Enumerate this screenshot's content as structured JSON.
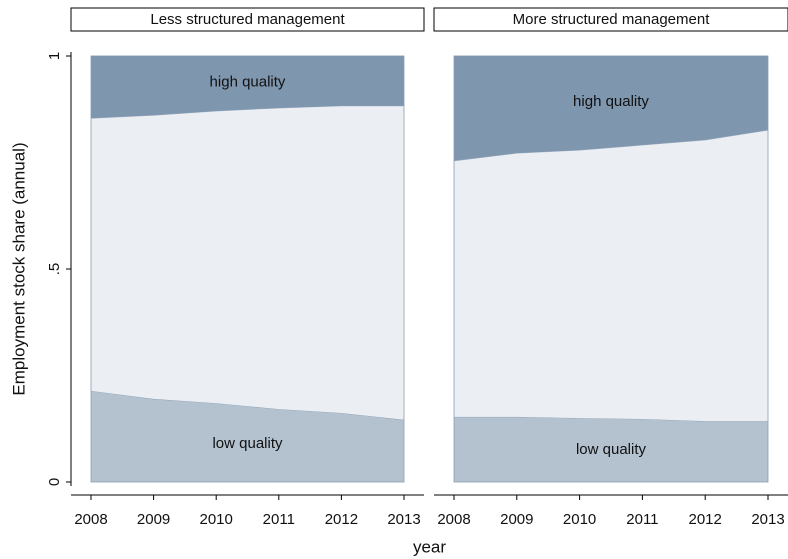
{
  "chart_data": [
    {
      "type": "area",
      "stacked": true,
      "title": "Less structured management",
      "ylabel": "Employment stock share (annual)",
      "xlabel": "year",
      "x": [
        2008,
        2009,
        2010,
        2011,
        2012,
        2013
      ],
      "xlim": [
        2008,
        2013
      ],
      "xticks": [
        2008,
        2009,
        2010,
        2011,
        2012,
        2013
      ],
      "ylim": [
        0,
        1
      ],
      "yticks": [
        0,
        {
          "value": 0.5,
          "label": ".5"
        },
        1
      ],
      "series": [
        {
          "name": "low quality",
          "color": "#b4c2d0",
          "values": [
            0.214,
            0.195,
            0.185,
            0.171,
            0.162,
            0.146
          ]
        },
        {
          "color": "#ebeff4",
          "values": [
            0.64,
            0.666,
            0.686,
            0.707,
            0.721,
            0.737
          ]
        },
        {
          "name": "high quality",
          "color": "#7f96af",
          "values": [
            0.146,
            0.139,
            0.129,
            0.122,
            0.117,
            0.117
          ]
        }
      ]
    },
    {
      "type": "area",
      "stacked": true,
      "title": "More structured management",
      "x": [
        2008,
        2009,
        2010,
        2011,
        2012,
        2013
      ],
      "xlim": [
        2008,
        2013
      ],
      "xticks": [
        2008,
        2009,
        2010,
        2011,
        2012,
        2013
      ],
      "ylim": [
        0,
        1
      ],
      "series": [
        {
          "name": "low quality",
          "color": "#b4c2d0",
          "values": [
            0.153,
            0.153,
            0.15,
            0.148,
            0.143,
            0.143
          ]
        },
        {
          "color": "#ebeff4",
          "values": [
            0.601,
            0.619,
            0.629,
            0.643,
            0.66,
            0.683
          ]
        },
        {
          "name": "high quality",
          "color": "#7f96af",
          "values": [
            0.246,
            0.228,
            0.221,
            0.209,
            0.197,
            0.174
          ]
        }
      ]
    }
  ]
}
